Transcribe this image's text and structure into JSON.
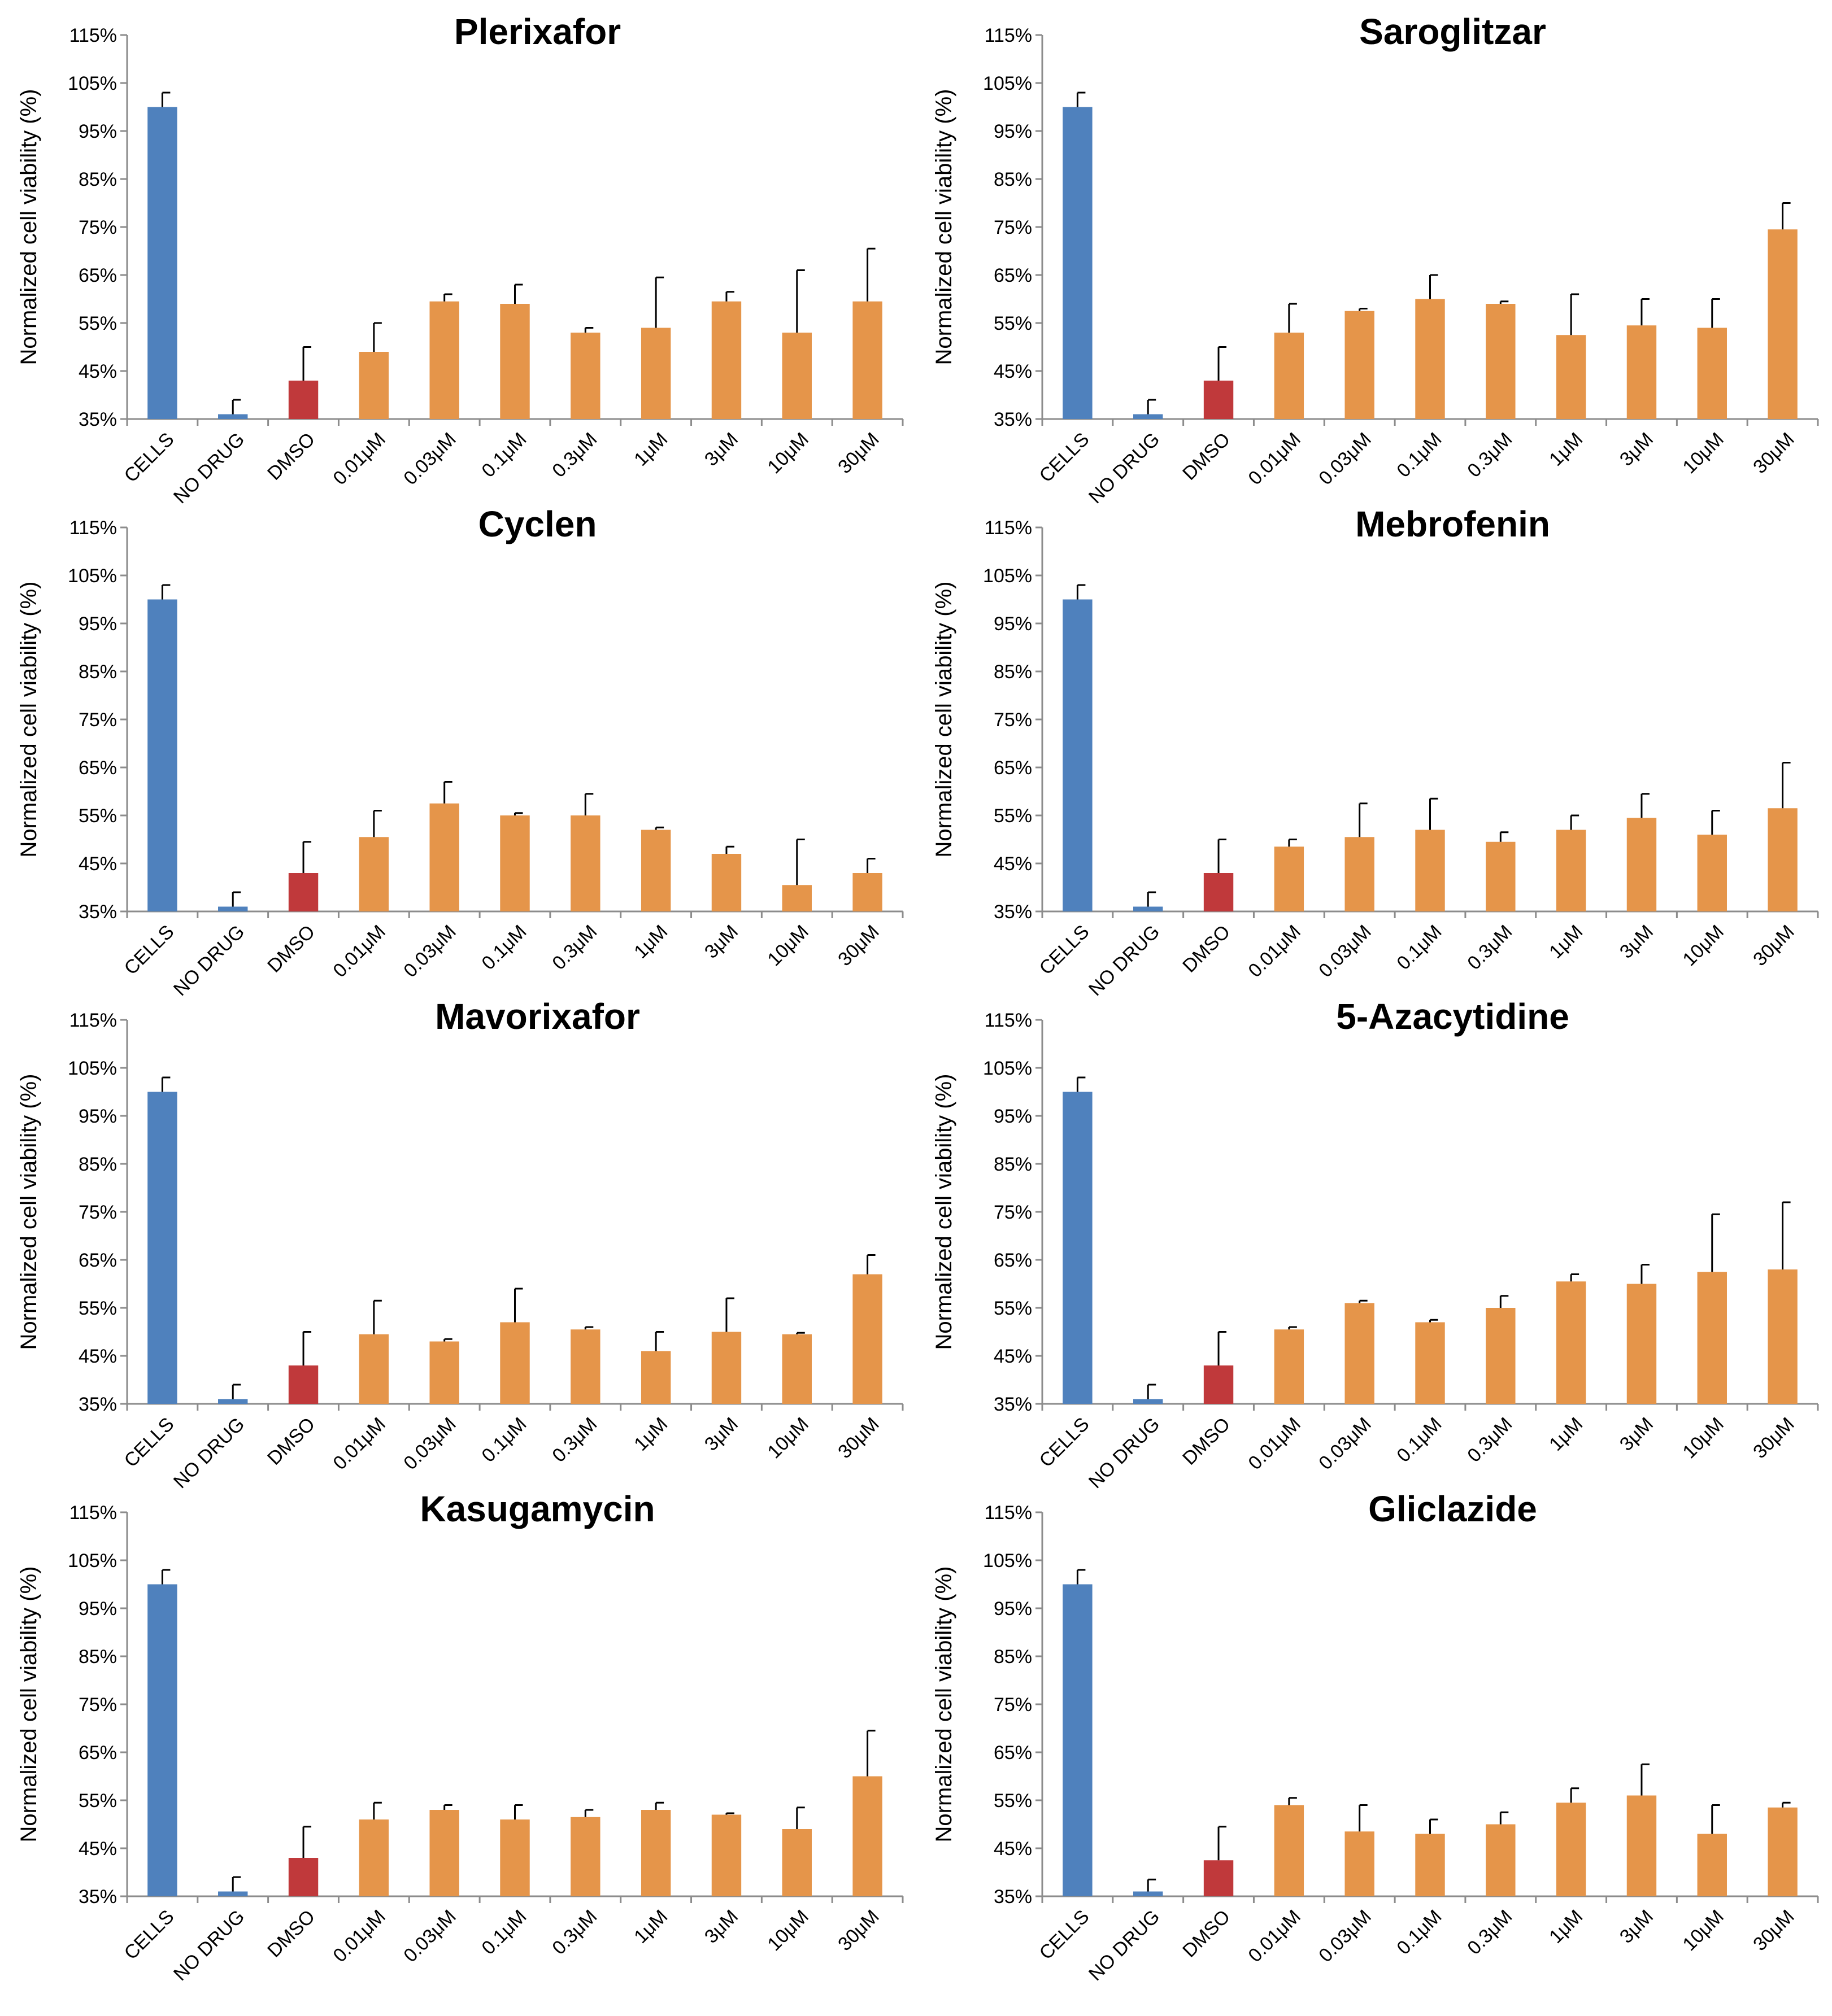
{
  "colors": {
    "cells": "#4f81bd",
    "control": "#c0393b",
    "drug": "#e5954a",
    "axis": "#8c8c8c",
    "error": "#000000"
  },
  "chart_data": [
    {
      "type": "bar",
      "title": "Plerixafor",
      "ylabel": "Normalized cell viability (%)",
      "ylim": [
        35,
        115
      ],
      "yticks": [
        35,
        45,
        55,
        65,
        75,
        85,
        95,
        105,
        115
      ],
      "ytick_labels": [
        "35%",
        "45%",
        "55%",
        "65%",
        "75%",
        "85%",
        "95%",
        "105%",
        "115%"
      ],
      "categories": [
        "CELLS",
        "NO DRUG",
        "DMSO",
        "0.01μM",
        "0.03μM",
        "0.1μM",
        "0.3μM",
        "1μM",
        "3μM",
        "10μM",
        "30μM"
      ],
      "values": [
        100,
        36,
        43,
        49,
        59.5,
        59,
        53,
        54,
        59.5,
        53,
        59.5
      ],
      "errors": [
        3,
        3,
        7,
        6,
        1.5,
        4,
        1,
        10.5,
        2,
        13,
        11
      ],
      "bar_colors": [
        "cells",
        "cells",
        "control",
        "drug",
        "drug",
        "drug",
        "drug",
        "drug",
        "drug",
        "drug",
        "drug"
      ]
    },
    {
      "type": "bar",
      "title": "Saroglitzar",
      "ylabel": "Normalized cell viability (%)",
      "ylim": [
        35,
        115
      ],
      "yticks": [
        35,
        45,
        55,
        65,
        75,
        85,
        95,
        105,
        115
      ],
      "ytick_labels": [
        "35%",
        "45%",
        "55%",
        "65%",
        "75%",
        "85%",
        "95%",
        "105%",
        "115%"
      ],
      "categories": [
        "CELLS",
        "NO DRUG",
        "DMSO",
        "0.01μM",
        "0.03μM",
        "0.1μM",
        "0.3μM",
        "1μM",
        "3μM",
        "10μM",
        "30μM"
      ],
      "values": [
        100,
        36,
        43,
        53,
        57.5,
        60,
        59,
        52.5,
        54.5,
        54,
        74.5
      ],
      "errors": [
        3,
        3,
        7,
        6,
        0.5,
        5,
        0.5,
        8.5,
        5.5,
        6,
        5.5
      ],
      "bar_colors": [
        "cells",
        "cells",
        "control",
        "drug",
        "drug",
        "drug",
        "drug",
        "drug",
        "drug",
        "drug",
        "drug"
      ]
    },
    {
      "type": "bar",
      "title": "Cyclen",
      "ylabel": "Normalized cell viability (%)",
      "ylim": [
        35,
        115
      ],
      "yticks": [
        35,
        45,
        55,
        65,
        75,
        85,
        95,
        105,
        115
      ],
      "ytick_labels": [
        "35%",
        "45%",
        "55%",
        "65%",
        "75%",
        "85%",
        "95%",
        "105%",
        "115%"
      ],
      "categories": [
        "CELLS",
        "NO DRUG",
        "DMSO",
        "0.01μM",
        "0.03μM",
        "0.1μM",
        "0.3μM",
        "1μM",
        "3μM",
        "10μM",
        "30μM"
      ],
      "values": [
        100,
        36,
        43,
        50.5,
        57.5,
        55,
        55,
        52,
        47,
        40.5,
        43
      ],
      "errors": [
        3,
        3,
        6.5,
        5.5,
        4.5,
        0.5,
        4.5,
        0.5,
        1.5,
        9.5,
        3
      ],
      "bar_colors": [
        "cells",
        "cells",
        "control",
        "drug",
        "drug",
        "drug",
        "drug",
        "drug",
        "drug",
        "drug",
        "drug"
      ]
    },
    {
      "type": "bar",
      "title": "Mebrofenin",
      "ylabel": "Normalized cell viability (%)",
      "ylim": [
        35,
        115
      ],
      "yticks": [
        35,
        45,
        55,
        65,
        75,
        85,
        95,
        105,
        115
      ],
      "ytick_labels": [
        "35%",
        "45%",
        "55%",
        "65%",
        "75%",
        "85%",
        "95%",
        "105%",
        "115%"
      ],
      "categories": [
        "CELLS",
        "NO DRUG",
        "DMSO",
        "0.01μM",
        "0.03μM",
        "0.1μM",
        "0.3μM",
        "1μM",
        "3μM",
        "10μM",
        "30μM"
      ],
      "values": [
        100,
        36,
        43,
        48.5,
        50.5,
        52,
        49.5,
        52,
        54.5,
        51,
        56.5
      ],
      "errors": [
        3,
        3,
        7,
        1.5,
        7,
        6.5,
        2,
        3,
        5,
        5,
        9.5
      ],
      "bar_colors": [
        "cells",
        "cells",
        "control",
        "drug",
        "drug",
        "drug",
        "drug",
        "drug",
        "drug",
        "drug",
        "drug"
      ]
    },
    {
      "type": "bar",
      "title": "Mavorixafor",
      "ylabel": "Normalized cell viability (%)",
      "ylim": [
        35,
        115
      ],
      "yticks": [
        35,
        45,
        55,
        65,
        75,
        85,
        95,
        105,
        115
      ],
      "ytick_labels": [
        "35%",
        "45%",
        "55%",
        "65%",
        "75%",
        "85%",
        "95%",
        "105%",
        "115%"
      ],
      "categories": [
        "CELLS",
        "NO DRUG",
        "DMSO",
        "0.01μM",
        "0.03μM",
        "0.1μM",
        "0.3μM",
        "1μM",
        "3μM",
        "10μM",
        "30μM"
      ],
      "values": [
        100,
        36,
        43,
        49.5,
        48,
        52,
        50.5,
        46,
        50,
        49.5,
        62
      ],
      "errors": [
        3,
        3,
        7,
        7,
        0.5,
        7,
        0.5,
        4,
        7,
        0.3,
        4
      ],
      "bar_colors": [
        "cells",
        "cells",
        "control",
        "drug",
        "drug",
        "drug",
        "drug",
        "drug",
        "drug",
        "drug",
        "drug"
      ]
    },
    {
      "type": "bar",
      "title": "5-Azacytidine",
      "ylabel": "Normalized cell viability (%)",
      "ylim": [
        35,
        115
      ],
      "yticks": [
        35,
        45,
        55,
        65,
        75,
        85,
        95,
        105,
        115
      ],
      "ytick_labels": [
        "35%",
        "45%",
        "55%",
        "65%",
        "75%",
        "85%",
        "95%",
        "105%",
        "115%"
      ],
      "categories": [
        "CELLS",
        "NO DRUG",
        "DMSO",
        "0.01μM",
        "0.03μM",
        "0.1μM",
        "0.3μM",
        "1μM",
        "3μM",
        "10μM",
        "30μM"
      ],
      "values": [
        100,
        36,
        43,
        50.5,
        56,
        52,
        55,
        60.5,
        60,
        62.5,
        63
      ],
      "errors": [
        3,
        3,
        7,
        0.5,
        0.5,
        0.5,
        2.5,
        1.5,
        4,
        12,
        14
      ],
      "bar_colors": [
        "cells",
        "cells",
        "control",
        "drug",
        "drug",
        "drug",
        "drug",
        "drug",
        "drug",
        "drug",
        "drug"
      ]
    },
    {
      "type": "bar",
      "title": "Kasugamycin",
      "ylabel": "Normalized cell viability (%)",
      "ylim": [
        35,
        115
      ],
      "yticks": [
        35,
        45,
        55,
        65,
        75,
        85,
        95,
        105,
        115
      ],
      "ytick_labels": [
        "35%",
        "45%",
        "55%",
        "65%",
        "75%",
        "85%",
        "95%",
        "105%",
        "115%"
      ],
      "categories": [
        "CELLS",
        "NO DRUG",
        "DMSO",
        "0.01μM",
        "0.03μM",
        "0.1μM",
        "0.3μM",
        "1μM",
        "3μM",
        "10μM",
        "30μM"
      ],
      "values": [
        100,
        36,
        43,
        51,
        53,
        51,
        51.5,
        53,
        52,
        49,
        60
      ],
      "errors": [
        3,
        3,
        6.5,
        3.5,
        1,
        3,
        1.5,
        1.5,
        0.3,
        4.5,
        9.5
      ],
      "bar_colors": [
        "cells",
        "cells",
        "control",
        "drug",
        "drug",
        "drug",
        "drug",
        "drug",
        "drug",
        "drug",
        "drug"
      ]
    },
    {
      "type": "bar",
      "title": "Gliclazide",
      "ylabel": "Normalized cell viability (%)",
      "ylim": [
        35,
        115
      ],
      "yticks": [
        35,
        45,
        55,
        65,
        75,
        85,
        95,
        105,
        115
      ],
      "ytick_labels": [
        "35%",
        "45%",
        "55%",
        "65%",
        "75%",
        "85%",
        "95%",
        "105%",
        "115%"
      ],
      "categories": [
        "CELLS",
        "NO DRUG",
        "DMSO",
        "0.01μM",
        "0.03μM",
        "0.1μM",
        "0.3μM",
        "1μM",
        "3μM",
        "10μM",
        "30μM"
      ],
      "values": [
        100,
        36,
        42.5,
        54,
        48.5,
        48,
        50,
        54.5,
        56,
        48,
        53.5
      ],
      "errors": [
        3,
        2.5,
        7,
        1.5,
        5.5,
        3,
        2.5,
        3,
        6.5,
        6,
        1
      ],
      "bar_colors": [
        "cells",
        "cells",
        "control",
        "drug",
        "drug",
        "drug",
        "drug",
        "drug",
        "drug",
        "drug",
        "drug"
      ]
    }
  ]
}
